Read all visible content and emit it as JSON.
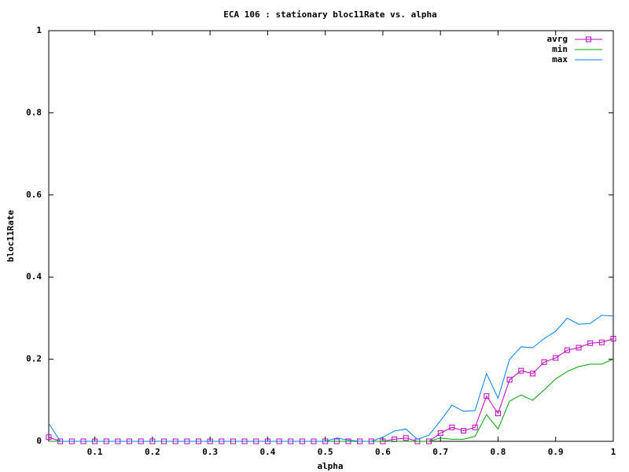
{
  "chart_data": {
    "type": "line",
    "title": "ECA 106 : stationary bloc11Rate vs. alpha",
    "xlabel": "alpha",
    "ylabel": "bloc11Rate",
    "x": [
      0.02,
      0.04,
      0.06,
      0.08,
      0.1,
      0.12,
      0.14,
      0.16,
      0.18,
      0.2,
      0.22,
      0.24,
      0.26,
      0.28,
      0.3,
      0.32,
      0.34,
      0.36,
      0.38,
      0.4,
      0.42,
      0.44,
      0.46,
      0.48,
      0.5,
      0.52,
      0.54,
      0.56,
      0.58,
      0.6,
      0.62,
      0.64,
      0.66,
      0.68,
      0.7,
      0.72,
      0.74,
      0.76,
      0.78,
      0.8,
      0.82,
      0.84,
      0.86,
      0.88,
      0.9,
      0.92,
      0.94,
      0.96,
      0.98,
      1
    ],
    "series": [
      {
        "name": "avrg",
        "color": "#c000c0",
        "marker": "square",
        "values": [
          0.01,
          0,
          0,
          0,
          0,
          0,
          0,
          0,
          0,
          0,
          0,
          0,
          0,
          0,
          0,
          0,
          0,
          0,
          0,
          0,
          0,
          0,
          0,
          0,
          0,
          0,
          0,
          0,
          0,
          0,
          0.005,
          0.008,
          0,
          0,
          0.02,
          0.034,
          0.026,
          0.034,
          0.11,
          0.068,
          0.15,
          0.172,
          0.165,
          0.193,
          0.203,
          0.222,
          0.228,
          0.239,
          0.241,
          0.25
        ]
      },
      {
        "name": "min",
        "color": "#00a000",
        "values": [
          0,
          0,
          0,
          0,
          0,
          0,
          0,
          0,
          0,
          0,
          0,
          0,
          0,
          0,
          0,
          0,
          0,
          0,
          0,
          0,
          0,
          0,
          0,
          0,
          0,
          0,
          0,
          0,
          0,
          0,
          0,
          0,
          0,
          0,
          0.008,
          0.005,
          0.005,
          0.012,
          0.065,
          0.03,
          0.098,
          0.113,
          0.1,
          0.125,
          0.152,
          0.17,
          0.182,
          0.188,
          0.188,
          0.2
        ]
      },
      {
        "name": "max",
        "color": "#0080ff",
        "values": [
          0.044,
          0,
          0,
          0,
          0,
          0,
          0,
          0,
          0,
          0,
          0,
          0,
          0,
          0,
          0,
          0,
          0,
          0,
          0,
          0,
          0,
          0,
          0,
          0,
          0,
          0.008,
          0.003,
          0,
          0,
          0.01,
          0.025,
          0.03,
          0.005,
          0.015,
          0.05,
          0.088,
          0.073,
          0.075,
          0.165,
          0.105,
          0.2,
          0.23,
          0.228,
          0.25,
          0.268,
          0.3,
          0.285,
          0.287,
          0.307,
          0.305
        ]
      }
    ],
    "xlim": [
      0.02,
      1
    ],
    "xticks": [
      0.1,
      0.2,
      0.3,
      0.4,
      0.5,
      0.6,
      0.7,
      0.8,
      0.9,
      1
    ],
    "ylim": [
      0,
      1
    ],
    "yticks": [
      0,
      0.2,
      0.4,
      0.6,
      0.8,
      1
    ],
    "legend": "top-right"
  }
}
